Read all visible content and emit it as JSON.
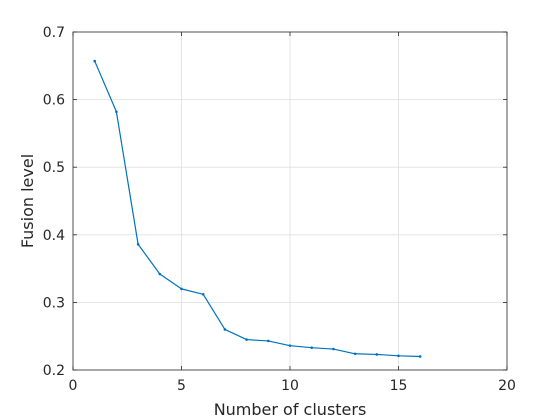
{
  "chart_data": {
    "type": "line",
    "title": "",
    "xlabel": "Number of clusters",
    "ylabel": "Fusion level",
    "xlim": [
      0,
      20
    ],
    "ylim": [
      0.2,
      0.7
    ],
    "xticks": [
      0,
      5,
      10,
      15,
      20
    ],
    "xtick_labels": [
      "0",
      "5",
      "10",
      "15",
      "20"
    ],
    "yticks": [
      0.2,
      0.3,
      0.4,
      0.5,
      0.6,
      0.7
    ],
    "ytick_labels": [
      "0.2",
      "0.3",
      "0.4",
      "0.5",
      "0.6",
      "0.7"
    ],
    "grid": true,
    "line_color": "#0072BD",
    "x": [
      1,
      2,
      3,
      4,
      5,
      6,
      7,
      8,
      9,
      10,
      11,
      12,
      13,
      14,
      15,
      16
    ],
    "y": [
      0.657,
      0.582,
      0.386,
      0.342,
      0.32,
      0.312,
      0.26,
      0.245,
      0.243,
      0.236,
      0.233,
      0.231,
      0.224,
      0.223,
      0.221,
      0.22
    ]
  }
}
